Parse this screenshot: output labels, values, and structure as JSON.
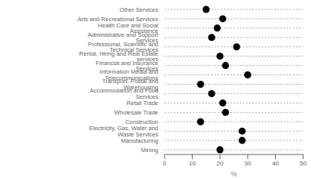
{
  "chart_data": {
    "type": "dot",
    "orientation": "horizontal",
    "categories": [
      "Other Services",
      "Arts and Recreational Services",
      "Health Care and Social Assistance",
      "Administrative and Support Services",
      "Professional, Scientific and Technical Services",
      "Rental, Hiring and Real Estate services",
      "Financial and Insurance Services",
      "Information Media and Telecommunications",
      "Transport, Postal and Warehousing",
      "Accommodation and Food Services",
      "Retail Trade",
      "Wholesale Trade",
      "Construction",
      "Electricity, Gas, Water and Waste Services",
      "Manufacturing",
      "Mining"
    ],
    "values": [
      15,
      21,
      19,
      17,
      26,
      20,
      22,
      30,
      13,
      17,
      21,
      22,
      13,
      28,
      28,
      20
    ],
    "color": "#000000",
    "xlabel": "%",
    "xlim": [
      0,
      50
    ],
    "xticks": [
      0,
      10,
      20,
      30,
      40,
      50
    ],
    "grid": true
  }
}
